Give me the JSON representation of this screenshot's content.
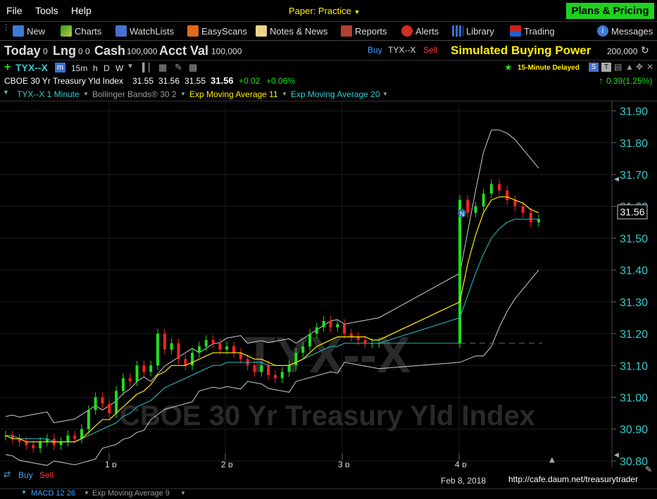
{
  "menu": {
    "items": [
      "File",
      "Tools",
      "Help"
    ],
    "account_mode": "Paper: Practice",
    "plans_button": "Plans & Pricing"
  },
  "toolbar": {
    "items": [
      {
        "label": "New",
        "icon": "new-icon"
      },
      {
        "label": "Charts",
        "icon": "chart-icon"
      },
      {
        "label": "WatchLists",
        "icon": "watchlist-icon"
      },
      {
        "label": "EasyScans",
        "icon": "scan-icon"
      },
      {
        "label": "Notes & News",
        "icon": "notes-icon"
      },
      {
        "label": "Reports",
        "icon": "reports-icon"
      },
      {
        "label": "Alerts",
        "icon": "alarm-clock-icon"
      },
      {
        "label": "Library",
        "icon": "library-icon"
      },
      {
        "label": "Trading",
        "icon": "trading-icon"
      },
      {
        "label": "Messages",
        "icon": "info-icon"
      }
    ]
  },
  "account": {
    "today_label": "Today",
    "today_value": "0",
    "lng_label": "Lng",
    "lng_value": "0 0",
    "cash_label": "Cash",
    "cash_value": "100,000",
    "acct_label": "Acct Val",
    "acct_value": "100,000",
    "buy_label": "Buy",
    "symbol": "TYX--X",
    "sell_label": "Sell",
    "sbp_label": "Simulated Buying Power",
    "sbp_value": "200,000"
  },
  "symbol_bar": {
    "symbol": "TYX--X",
    "timeframes": [
      "m",
      "15m",
      "h",
      "D",
      "W"
    ],
    "delay_label": "15-Minute Delayed"
  },
  "quote": {
    "name": "CBOE 30 Yr Treasury Yld Index",
    "open": "31.55",
    "high": "31.56",
    "low": "31.55",
    "last": "31.56",
    "change": "+0.02",
    "change_pct": "+0.06%",
    "day_change": "0.39(1.25%)"
  },
  "studies": {
    "main": "TYX--X 1 Minute",
    "bollinger": "Bollinger Bands® 30 2",
    "ema11": "Exp Moving Average 11",
    "ema20": "Exp Moving Average 20"
  },
  "colors": {
    "up": "#22dd22",
    "down": "#ff2222",
    "ema11": "#ffee00",
    "ema20": "#22aaaa",
    "bands": "#cccccc",
    "axis": "#33cccc"
  },
  "chart_data": {
    "type": "candlestick",
    "title": "",
    "watermark_symbol": "TYX--X",
    "watermark_name": "CBOE 30 Yr Treasury Yld Index",
    "y_ticks": [
      "31.90",
      "31.80",
      "31.70",
      "31.60",
      "31.50",
      "31.40",
      "31.30",
      "31.20",
      "31.10",
      "31.00",
      "30.90",
      "30.80"
    ],
    "y_range": [
      30.78,
      31.93
    ],
    "x_ticks": [
      "1 p",
      "2 p",
      "3 p",
      "4 p"
    ],
    "date_label": "Feb 8, 2018",
    "last_price_label": "31.56",
    "close_series": [
      30.88,
      30.87,
      30.86,
      30.85,
      30.84,
      30.86,
      30.87,
      30.85,
      30.86,
      30.88,
      30.87,
      30.9,
      30.96,
      31.0,
      30.98,
      30.95,
      31.02,
      31.06,
      31.05,
      31.1,
      31.08,
      31.1,
      31.2,
      31.15,
      31.17,
      31.12,
      31.1,
      31.14,
      31.16,
      31.18,
      31.17,
      31.15,
      31.16,
      31.14,
      31.12,
      31.1,
      31.08,
      31.1,
      31.07,
      31.06,
      31.08,
      31.1,
      31.14,
      31.16,
      31.2,
      31.22,
      31.24,
      31.22,
      31.23,
      31.2,
      31.19,
      31.18,
      31.17,
      31.17,
      31.17,
      31.62,
      31.58,
      31.6,
      31.64,
      31.67,
      31.65,
      31.62,
      31.6,
      31.58,
      31.55,
      31.56
    ],
    "ema11_series": [
      30.88,
      30.87,
      30.87,
      30.86,
      30.86,
      30.86,
      30.86,
      30.86,
      30.86,
      30.86,
      30.86,
      30.87,
      30.89,
      30.91,
      30.93,
      30.93,
      30.95,
      30.97,
      30.99,
      31.01,
      31.02,
      31.04,
      31.07,
      31.08,
      31.1,
      31.1,
      31.1,
      31.11,
      31.12,
      31.13,
      31.14,
      31.14,
      31.14,
      31.14,
      31.14,
      31.13,
      31.12,
      31.12,
      31.11,
      31.1,
      31.1,
      31.1,
      31.11,
      31.12,
      31.14,
      31.16,
      31.17,
      31.18,
      31.19,
      31.19,
      31.19,
      31.19,
      31.19,
      31.18,
      31.18,
      31.3,
      31.42,
      31.51,
      31.58,
      31.62,
      31.63,
      31.63,
      31.62,
      31.61,
      31.59,
      31.58
    ],
    "ema20_series": [
      30.88,
      30.88,
      30.87,
      30.87,
      30.87,
      30.87,
      30.87,
      30.86,
      30.86,
      30.86,
      30.86,
      30.87,
      30.88,
      30.89,
      30.9,
      30.91,
      30.92,
      30.94,
      30.95,
      30.97,
      30.98,
      30.99,
      31.01,
      31.03,
      31.04,
      31.05,
      31.06,
      31.07,
      31.08,
      31.09,
      31.1,
      31.1,
      31.11,
      31.11,
      31.11,
      31.11,
      31.11,
      31.11,
      31.1,
      31.1,
      31.1,
      31.1,
      31.11,
      31.12,
      31.13,
      31.14,
      31.15,
      31.16,
      31.16,
      31.17,
      31.17,
      31.17,
      31.17,
      31.17,
      31.17,
      31.25,
      31.32,
      31.39,
      31.45,
      31.5,
      31.53,
      31.55,
      31.56,
      31.56,
      31.56,
      31.56
    ]
  },
  "bottom": {
    "buy_label": "Buy",
    "sell_label": "Sell",
    "watermark_url": "http://cafe.daum.net/treasurytrader",
    "macd_label": "MACD 12 26",
    "ema9_label": "Exp Moving Average 9"
  }
}
